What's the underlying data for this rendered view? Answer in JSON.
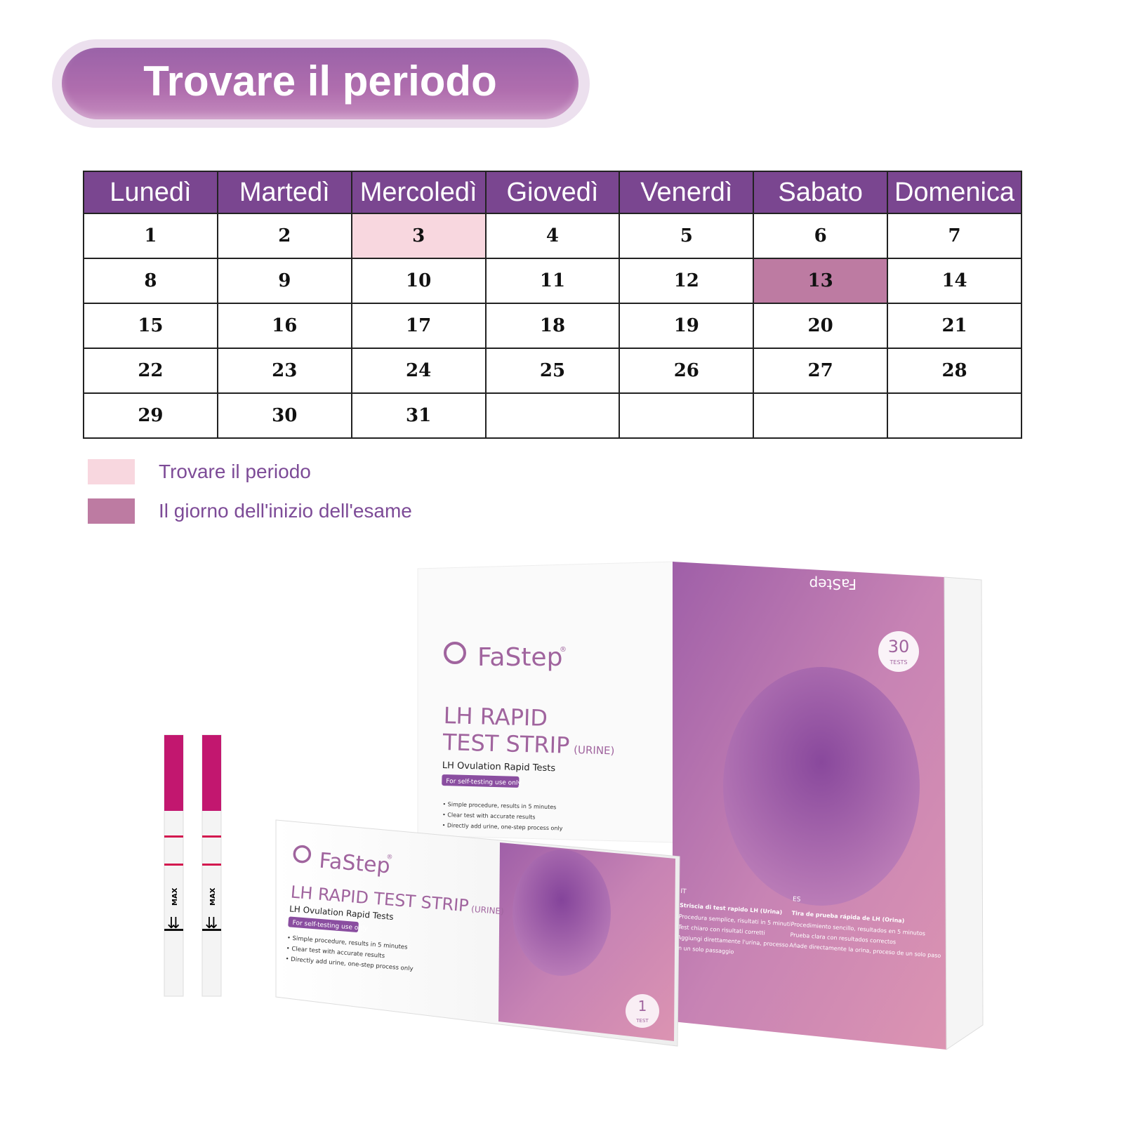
{
  "banner": {
    "title": "Trovare il periodo"
  },
  "calendar": {
    "days": [
      "Lunedì",
      "Martedì",
      "Mercoledì",
      "Giovedì",
      "Venerdì",
      "Sabato",
      "Domenica"
    ],
    "weeks": [
      [
        "1",
        "2",
        "3",
        "4",
        "5",
        "6",
        "7"
      ],
      [
        "8",
        "9",
        "10",
        "11",
        "12",
        "13",
        "14"
      ],
      [
        "15",
        "16",
        "17",
        "18",
        "19",
        "20",
        "21"
      ],
      [
        "22",
        "23",
        "24",
        "25",
        "26",
        "27",
        "28"
      ],
      [
        "29",
        "30",
        "31",
        "",
        "",
        "",
        ""
      ]
    ],
    "period_day": "3",
    "start_day": "13"
  },
  "legend": [
    {
      "label": "Trovare il periodo",
      "color": "#f8d7df"
    },
    {
      "label": "Il giorno dell'inizio dell'esame",
      "color": "#bd7ba2"
    }
  ],
  "colors": {
    "header": "#7a4690",
    "brand": "#a0649e",
    "strip": "#c2176f"
  },
  "product": {
    "brand": "FaStep",
    "reg": "®",
    "box": {
      "title1": "LH RAPID",
      "title2": "TEST STRIP",
      "urine": "(URINE)",
      "subtitle": "LH Ovulation Rapid Tests",
      "badge": "For self-testing use only",
      "bullets": [
        "Simple procedure, results in 5 minutes",
        "Clear test with accurate results",
        "Directly add urine, one-step process only"
      ],
      "count": "30",
      "count_unit": "TESTS",
      "it": {
        "tag": "IT",
        "title": "Striscia di test rapido LH (Urina)",
        "lines": [
          "Procedura semplice, risultati in 5 minuti",
          "Test chiaro con risultati corretti",
          "Aggiungi direttamente l'urina, processo",
          "in un solo passaggio"
        ]
      },
      "es": {
        "tag": "ES",
        "title": "Tira de prueba rápida de LH (Orina)",
        "lines": [
          "Procedimiento sencillo, resultados en 5 minutos",
          "Prueba clara con resultados correctos",
          "Añade directamente la orina, proceso de un solo paso"
        ]
      }
    },
    "sachet": {
      "title": "LH RAPID TEST STRIP",
      "urine": "(URINE)",
      "subtitle": "LH Ovulation Rapid Tests",
      "badge": "For self-testing use only",
      "bullets": [
        "Simple procedure, results in 5 minutes",
        "Clear test with accurate results",
        "Directly add urine, one-step process only"
      ],
      "count": "1",
      "count_unit": "TEST"
    },
    "strip_label": "MAX"
  }
}
